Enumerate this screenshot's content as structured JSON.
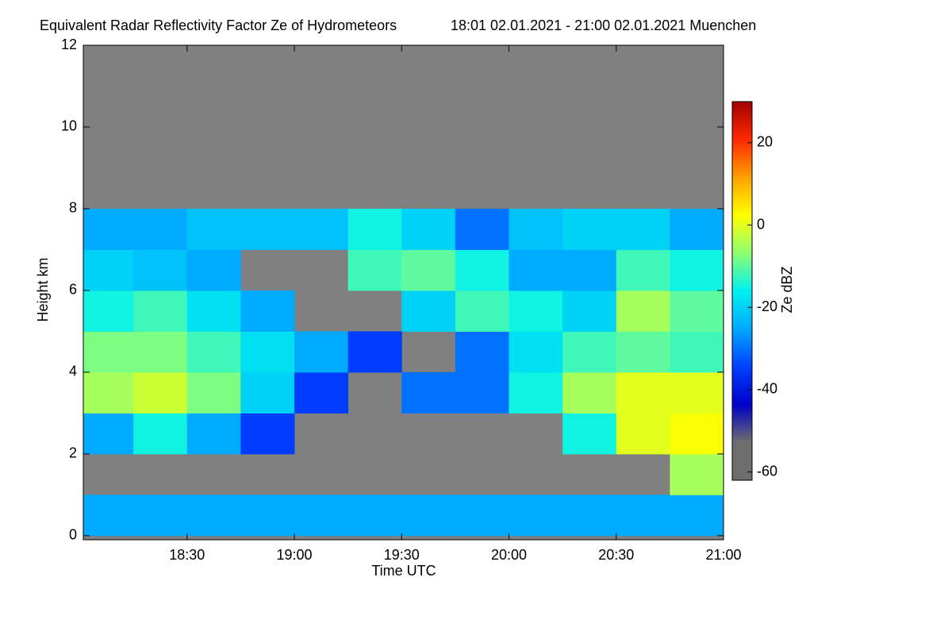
{
  "chart_data": {
    "type": "heatmap",
    "title": "Equivalent Radar Reflectivity Factor Ze of Hydrometeors",
    "subtitle": "18:01 02.01.2021 - 21:00 02.01.2021 Muenchen",
    "x_label": "Time UTC",
    "y_label": "Height km",
    "colorbar_label": "Ze dBZ",
    "xlim": [
      18.0167,
      21.0
    ],
    "xticks": [
      {
        "value": 18.5,
        "label": "18:30"
      },
      {
        "value": 19.0,
        "label": "19:00"
      },
      {
        "value": 19.5,
        "label": "19:30"
      },
      {
        "value": 20.0,
        "label": "20:00"
      },
      {
        "value": 20.5,
        "label": "20:30"
      },
      {
        "value": 21.0,
        "label": "21:00"
      }
    ],
    "ylim": [
      -0.1,
      12
    ],
    "yticks": [
      0,
      2,
      4,
      6,
      8,
      10,
      12
    ],
    "clim": [
      -62,
      30
    ],
    "cticks": [
      20,
      0,
      -20,
      -40,
      -60
    ],
    "colormap": [
      "#6e6e6e",
      "#6e6e6e",
      "#0000c8",
      "#0040ff",
      "#00a8ff",
      "#00f0f0",
      "#90ff70",
      "#ffff00",
      "#ffa000",
      "#ff2800",
      "#a00000"
    ],
    "background": "#808080",
    "x": [
      18.125,
      18.375,
      18.625,
      18.875,
      19.125,
      19.375,
      19.625,
      19.875,
      20.125,
      20.375,
      20.625,
      20.875
    ],
    "x_step": 0.25,
    "y": [
      0.5,
      1.5,
      2.5,
      3.5,
      4.5,
      5.5,
      6.5,
      7.5
    ],
    "y_step": 1,
    "z": [
      [
        -25,
        -25,
        -25,
        -25,
        -25,
        -25,
        -25,
        -25,
        -25,
        -25,
        -25,
        -25
      ],
      [
        null,
        null,
        null,
        null,
        null,
        null,
        null,
        null,
        null,
        null,
        null,
        -5
      ],
      [
        -25,
        -15,
        -25,
        -35,
        null,
        null,
        null,
        null,
        null,
        -15,
        0,
        2
      ],
      [
        -5,
        -2,
        -8,
        -20,
        -35,
        null,
        -30,
        -30,
        -15,
        -5,
        0,
        0
      ],
      [
        -8,
        -8,
        -12,
        -18,
        -25,
        -35,
        null,
        -30,
        -18,
        -12,
        -10,
        -12
      ],
      [
        -15,
        -12,
        -18,
        -25,
        null,
        null,
        -20,
        -12,
        -15,
        -20,
        -5,
        -10
      ],
      [
        -20,
        -22,
        -25,
        null,
        null,
        -12,
        -10,
        -15,
        -25,
        -25,
        -12,
        -15
      ],
      [
        -25,
        -25,
        -22,
        -22,
        -22,
        -15,
        -20,
        -30,
        -22,
        -20,
        -20,
        -25
      ]
    ]
  }
}
